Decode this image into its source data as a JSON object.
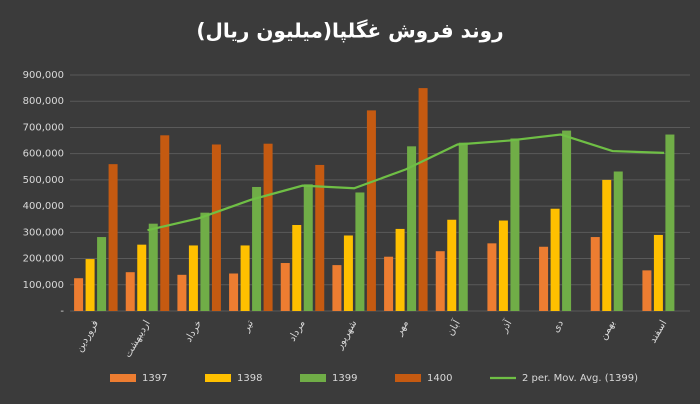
{
  "chart_data": {
    "type": "bar",
    "title": "روند فروش غگلپا(میلیون ریال)",
    "categories": [
      "فروردین",
      "اردیبهشت",
      "خرداد",
      "تیر",
      "مرداد",
      "شهریور",
      "مهر",
      "آبان",
      "آذر",
      "دی",
      "بهمن",
      "اسفند"
    ],
    "series": [
      {
        "name": "1397",
        "type": "bar",
        "color": "#ed7d31",
        "values": [
          125000,
          148000,
          138000,
          143000,
          183000,
          175000,
          207000,
          228000,
          258000,
          245000,
          282000,
          155000
        ]
      },
      {
        "name": "1398",
        "type": "bar",
        "color": "#ffc000",
        "values": [
          198000,
          253000,
          250000,
          250000,
          328000,
          288000,
          313000,
          348000,
          345000,
          390000,
          500000,
          290000
        ]
      },
      {
        "name": "1399",
        "type": "bar",
        "color": "#70ad47",
        "values": [
          282000,
          333000,
          375000,
          473000,
          483000,
          452000,
          628000,
          642000,
          658000,
          688000,
          532000,
          673000
        ]
      },
      {
        "name": "1400",
        "type": "bar",
        "color": "#c55a11",
        "values": [
          560000,
          670000,
          635000,
          638000,
          557000,
          765000,
          850000,
          null,
          null,
          null,
          null,
          null
        ]
      },
      {
        "name": "2 per. Mov. Avg. (1399)",
        "type": "line",
        "color": "#6fbf45",
        "values": [
          null,
          308000,
          354000,
          424000,
          478000,
          468000,
          540000,
          635000,
          650000,
          673000,
          610000,
          603000
        ]
      }
    ],
    "ylim": [
      0,
      900000
    ],
    "yticks": [
      {
        "value": 0,
        "label": "-"
      },
      {
        "value": 100000,
        "label": "100,000"
      },
      {
        "value": 200000,
        "label": "200,000"
      },
      {
        "value": 300000,
        "label": "300,000"
      },
      {
        "value": 400000,
        "label": "400,000"
      },
      {
        "value": 500000,
        "label": "500,000"
      },
      {
        "value": 600000,
        "label": "600,000"
      },
      {
        "value": 700000,
        "label": "700,000"
      },
      {
        "value": 800000,
        "label": "800,000"
      },
      {
        "value": 900000,
        "label": "900,000"
      }
    ],
    "grid": true
  }
}
